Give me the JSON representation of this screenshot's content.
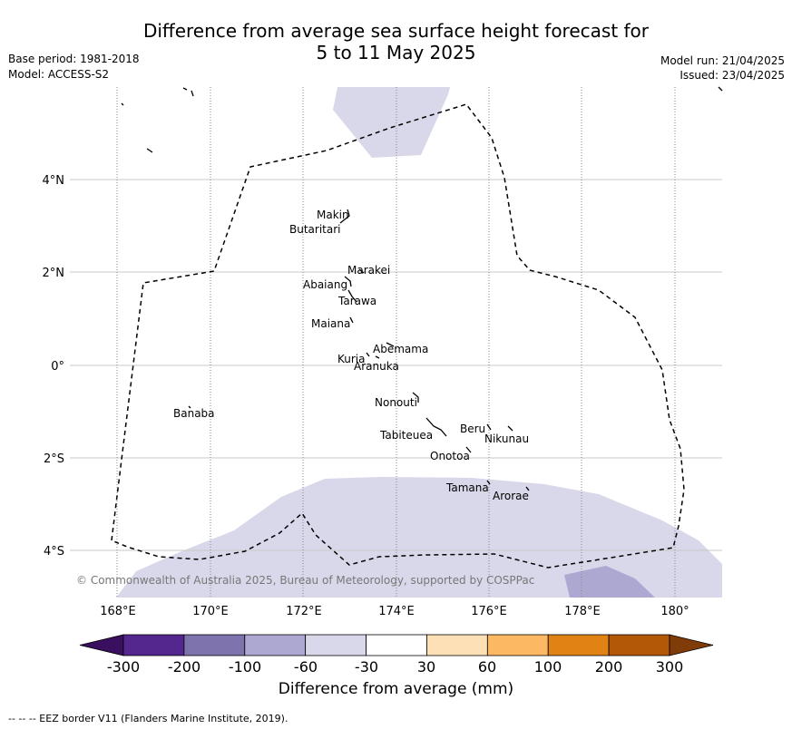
{
  "header": {
    "title_line1": "Difference from average sea surface height forecast for",
    "title_line2": "5 to 11 May 2025",
    "base_period": "Base period: 1981-2018",
    "model": "Model: ACCESS-S2",
    "model_run": "Model run: 21/04/2025",
    "issued": "Issued: 23/04/2025"
  },
  "map": {
    "lon_ticks": [
      "168°E",
      "170°E",
      "172°E",
      "174°E",
      "176°E",
      "178°E",
      "180°"
    ],
    "lat_ticks": [
      "4°N",
      "2°N",
      "0°",
      "2°S",
      "4°S"
    ],
    "copyright": "© Commonwealth of Australia 2025, Bureau of Meteorology, supported by COSPPac",
    "islands": [
      {
        "name": "Makin"
      },
      {
        "name": "Butaritari"
      },
      {
        "name": "Marakei"
      },
      {
        "name": "Abaiang"
      },
      {
        "name": "Tarawa"
      },
      {
        "name": "Maiana"
      },
      {
        "name": "Abemama"
      },
      {
        "name": "Kuria"
      },
      {
        "name": "Aranuka"
      },
      {
        "name": "Nonouti"
      },
      {
        "name": "Banaba"
      },
      {
        "name": "Beru"
      },
      {
        "name": "Nikunau"
      },
      {
        "name": "Tabiteuea"
      },
      {
        "name": "Onotoa"
      },
      {
        "name": "Tamana"
      },
      {
        "name": "Arorae"
      }
    ]
  },
  "colorbar": {
    "ticks": [
      "-300",
      "-200",
      "-100",
      "-60",
      "-30",
      "30",
      "60",
      "100",
      "200",
      "300"
    ],
    "colors": [
      "#3b0f60",
      "#54278f",
      "#7e73ac",
      "#aca8d2",
      "#d8d8ea",
      "#ffffff",
      "#fee0b6",
      "#fdb863",
      "#e08214",
      "#b35806",
      "#7f3b08"
    ],
    "label": "Difference from average (mm)"
  },
  "footnote": "--  --  -- EEZ border V11 (Flanders Marine Institute, 2019)."
}
